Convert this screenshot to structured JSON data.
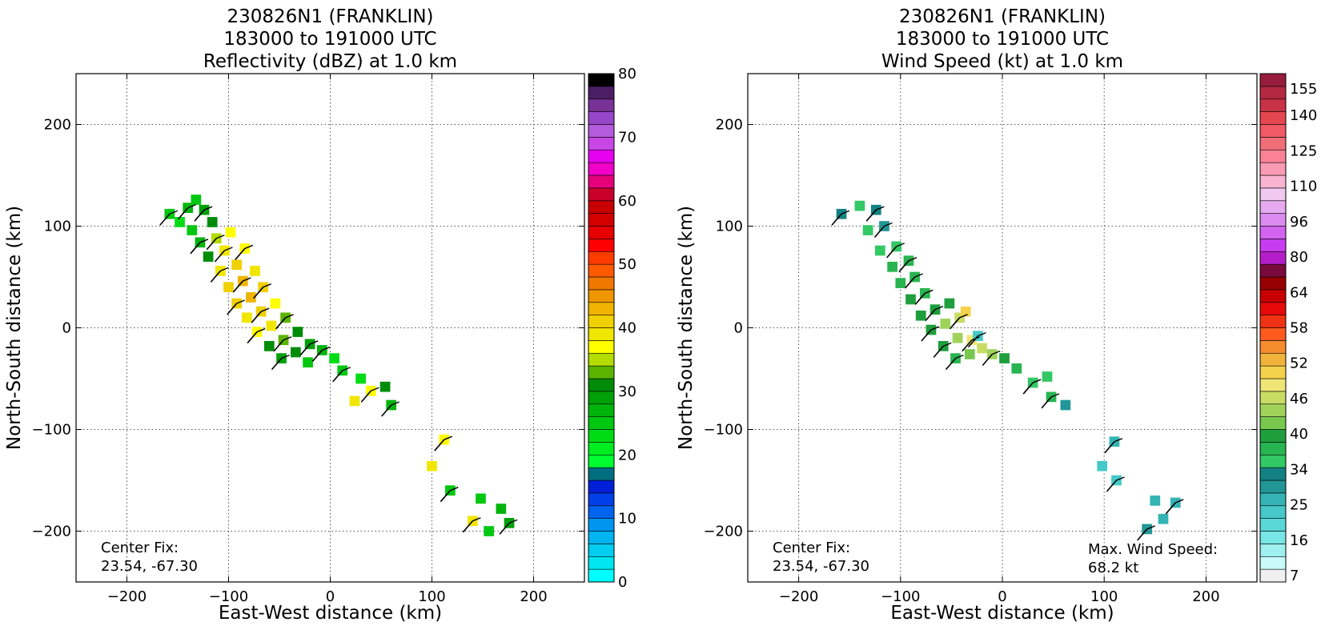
{
  "chart_data": [
    {
      "type": "heatmap",
      "title_lines": [
        "230826N1 (FRANKLIN)",
        "183000 to 191000 UTC",
        "Reflectivity (dBZ) at 1.0 km"
      ],
      "xlabel": "East-West distance (km)",
      "ylabel": "North-South distance (km)",
      "xlim": [
        -250,
        250
      ],
      "ylim": [
        -250,
        250
      ],
      "xticks": [
        -200,
        -100,
        0,
        100,
        200
      ],
      "yticks": [
        -200,
        -100,
        0,
        100,
        200
      ],
      "grid": true,
      "center_fix": {
        "label": "Center Fix:",
        "value": "23.54, -67.30"
      },
      "colorbar": {
        "ticks": [
          "0",
          "10",
          "20",
          "30",
          "40",
          "50",
          "60",
          "70",
          "80"
        ],
        "colors": [
          "#00ffff",
          "#00e6f0",
          "#00cdf0",
          "#00b4f0",
          "#0096f0",
          "#0064f0",
          "#0040e8",
          "#0020d8",
          "#006e80",
          "#00ff30",
          "#00ee20",
          "#00dc14",
          "#00c810",
          "#00b40c",
          "#00a008",
          "#008c08",
          "#5ab400",
          "#b4dc00",
          "#ffff00",
          "#f0e600",
          "#f0d000",
          "#f0b400",
          "#f09600",
          "#f07800",
          "#ff5a00",
          "#ff3c00",
          "#ff0000",
          "#e60000",
          "#d20000",
          "#c80000",
          "#c8002a",
          "#e6007a",
          "#f000c8",
          "#e600f0",
          "#c846e6",
          "#b45adc",
          "#9646c8",
          "#783296",
          "#4b1e64",
          "#000000"
        ]
      },
      "series": [
        {
          "x": -158,
          "y": 112,
          "v": 24
        },
        {
          "x": -148,
          "y": 104,
          "v": 22
        },
        {
          "x": -140,
          "y": 118,
          "v": 26
        },
        {
          "x": -132,
          "y": 126,
          "v": 24
        },
        {
          "x": -124,
          "y": 116,
          "v": 28
        },
        {
          "x": -136,
          "y": 96,
          "v": 24
        },
        {
          "x": -128,
          "y": 84,
          "v": 26
        },
        {
          "x": -116,
          "y": 104,
          "v": 30
        },
        {
          "x": -112,
          "y": 88,
          "v": 34
        },
        {
          "x": -120,
          "y": 70,
          "v": 30
        },
        {
          "x": -104,
          "y": 76,
          "v": 38
        },
        {
          "x": -98,
          "y": 94,
          "v": 36
        },
        {
          "x": -108,
          "y": 56,
          "v": 38
        },
        {
          "x": -92,
          "y": 62,
          "v": 40
        },
        {
          "x": -84,
          "y": 78,
          "v": 36
        },
        {
          "x": -100,
          "y": 40,
          "v": 40
        },
        {
          "x": -86,
          "y": 46,
          "v": 42
        },
        {
          "x": -74,
          "y": 56,
          "v": 38
        },
        {
          "x": -92,
          "y": 24,
          "v": 40
        },
        {
          "x": -78,
          "y": 30,
          "v": 42
        },
        {
          "x": -66,
          "y": 40,
          "v": 40
        },
        {
          "x": -82,
          "y": 10,
          "v": 38
        },
        {
          "x": -68,
          "y": 16,
          "v": 40
        },
        {
          "x": -54,
          "y": 24,
          "v": 36
        },
        {
          "x": -72,
          "y": -4,
          "v": 36
        },
        {
          "x": -58,
          "y": 2,
          "v": 38
        },
        {
          "x": -44,
          "y": 10,
          "v": 32
        },
        {
          "x": -60,
          "y": -18,
          "v": 30
        },
        {
          "x": -46,
          "y": -12,
          "v": 32
        },
        {
          "x": -32,
          "y": -4,
          "v": 30
        },
        {
          "x": -48,
          "y": -30,
          "v": 28
        },
        {
          "x": -34,
          "y": -24,
          "v": 30
        },
        {
          "x": -20,
          "y": -16,
          "v": 28
        },
        {
          "x": -22,
          "y": -34,
          "v": 24
        },
        {
          "x": -8,
          "y": -22,
          "v": 26
        },
        {
          "x": 4,
          "y": -30,
          "v": 22
        },
        {
          "x": 12,
          "y": -42,
          "v": 24
        },
        {
          "x": 30,
          "y": -50,
          "v": 22
        },
        {
          "x": 40,
          "y": -62,
          "v": 36
        },
        {
          "x": 54,
          "y": -58,
          "v": 30
        },
        {
          "x": 60,
          "y": -76,
          "v": 26
        },
        {
          "x": 24,
          "y": -72,
          "v": 38
        },
        {
          "x": 112,
          "y": -110,
          "v": 36
        },
        {
          "x": 100,
          "y": -136,
          "v": 38
        },
        {
          "x": 118,
          "y": -160,
          "v": 24
        },
        {
          "x": 148,
          "y": -168,
          "v": 24
        },
        {
          "x": 140,
          "y": -190,
          "v": 38
        },
        {
          "x": 168,
          "y": -178,
          "v": 26
        },
        {
          "x": 176,
          "y": -192,
          "v": 28
        },
        {
          "x": 156,
          "y": -200,
          "v": 24
        }
      ]
    },
    {
      "type": "heatmap",
      "title_lines": [
        "230826N1 (FRANKLIN)",
        "183000 to 191000 UTC",
        "Wind Speed (kt) at 1.0 km"
      ],
      "xlabel": "East-West distance (km)",
      "ylabel": "North-South distance (km)",
      "xlim": [
        -250,
        250
      ],
      "ylim": [
        -250,
        250
      ],
      "xticks": [
        -200,
        -100,
        0,
        100,
        200
      ],
      "yticks": [
        -200,
        -100,
        0,
        100,
        200
      ],
      "grid": true,
      "center_fix": {
        "label": "Center Fix:",
        "value": "23.54, -67.30"
      },
      "max_wind": {
        "label": "Max. Wind Speed:",
        "value": "68.2 kt"
      },
      "colorbar": {
        "ticks": [
          "7",
          "16",
          "25",
          "34",
          "40",
          "46",
          "52",
          "58",
          "64",
          "80",
          "96",
          "110",
          "125",
          "140",
          "155"
        ],
        "colors": [
          "#f0f0f0",
          "#c8fafa",
          "#a0f0f0",
          "#78e6e6",
          "#5ad7d7",
          "#46c8c8",
          "#34b4b4",
          "#229696",
          "#148282",
          "#32c864",
          "#28b450",
          "#1e9e3c",
          "#78c850",
          "#a0d25a",
          "#c8dc64",
          "#f0e678",
          "#f5d24b",
          "#f0b43c",
          "#f58c2d",
          "#ff5a1e",
          "#f03214",
          "#e60a0a",
          "#c80000",
          "#960000",
          "#780a3c",
          "#b41ec8",
          "#c83cf0",
          "#d264f0",
          "#dc8cf0",
          "#e6aaf0",
          "#f0c8f0",
          "#fab4d2",
          "#fa9bb4",
          "#fa8296",
          "#f06e78",
          "#f05a64",
          "#e64650",
          "#c83246",
          "#b42842",
          "#961e3c"
        ]
      },
      "series": [
        {
          "x": -158,
          "y": 112,
          "v": 34
        },
        {
          "x": -140,
          "y": 120,
          "v": 36
        },
        {
          "x": -124,
          "y": 116,
          "v": 34
        },
        {
          "x": -132,
          "y": 96,
          "v": 36
        },
        {
          "x": -116,
          "y": 100,
          "v": 30
        },
        {
          "x": -120,
          "y": 76,
          "v": 38
        },
        {
          "x": -104,
          "y": 80,
          "v": 38
        },
        {
          "x": -108,
          "y": 60,
          "v": 40
        },
        {
          "x": -92,
          "y": 66,
          "v": 40
        },
        {
          "x": -100,
          "y": 44,
          "v": 42
        },
        {
          "x": -86,
          "y": 50,
          "v": 42
        },
        {
          "x": -90,
          "y": 28,
          "v": 44
        },
        {
          "x": -76,
          "y": 34,
          "v": 42
        },
        {
          "x": -80,
          "y": 12,
          "v": 44
        },
        {
          "x": -66,
          "y": 18,
          "v": 44
        },
        {
          "x": -52,
          "y": 24,
          "v": 46
        },
        {
          "x": -70,
          "y": -2,
          "v": 44
        },
        {
          "x": -56,
          "y": 4,
          "v": 52
        },
        {
          "x": -42,
          "y": 10,
          "v": 58
        },
        {
          "x": -36,
          "y": 16,
          "v": 64
        },
        {
          "x": -58,
          "y": -18,
          "v": 44
        },
        {
          "x": -44,
          "y": -10,
          "v": 55
        },
        {
          "x": -30,
          "y": -12,
          "v": 60
        },
        {
          "x": -20,
          "y": -20,
          "v": 56
        },
        {
          "x": -46,
          "y": -30,
          "v": 42
        },
        {
          "x": -32,
          "y": -26,
          "v": 48
        },
        {
          "x": -10,
          "y": -26,
          "v": 52
        },
        {
          "x": 2,
          "y": -30,
          "v": 46
        },
        {
          "x": -24,
          "y": -8,
          "v": 20
        },
        {
          "x": 14,
          "y": -40,
          "v": 40
        },
        {
          "x": 30,
          "y": -54,
          "v": 38
        },
        {
          "x": 44,
          "y": -48,
          "v": 36
        },
        {
          "x": 48,
          "y": -68,
          "v": 42
        },
        {
          "x": 62,
          "y": -76,
          "v": 30
        },
        {
          "x": 110,
          "y": -112,
          "v": 25
        },
        {
          "x": 98,
          "y": -136,
          "v": 22
        },
        {
          "x": 112,
          "y": -150,
          "v": 20
        },
        {
          "x": 150,
          "y": -170,
          "v": 24
        },
        {
          "x": 170,
          "y": -172,
          "v": 26
        },
        {
          "x": 158,
          "y": -188,
          "v": 26
        },
        {
          "x": 142,
          "y": -198,
          "v": 28
        }
      ]
    }
  ]
}
